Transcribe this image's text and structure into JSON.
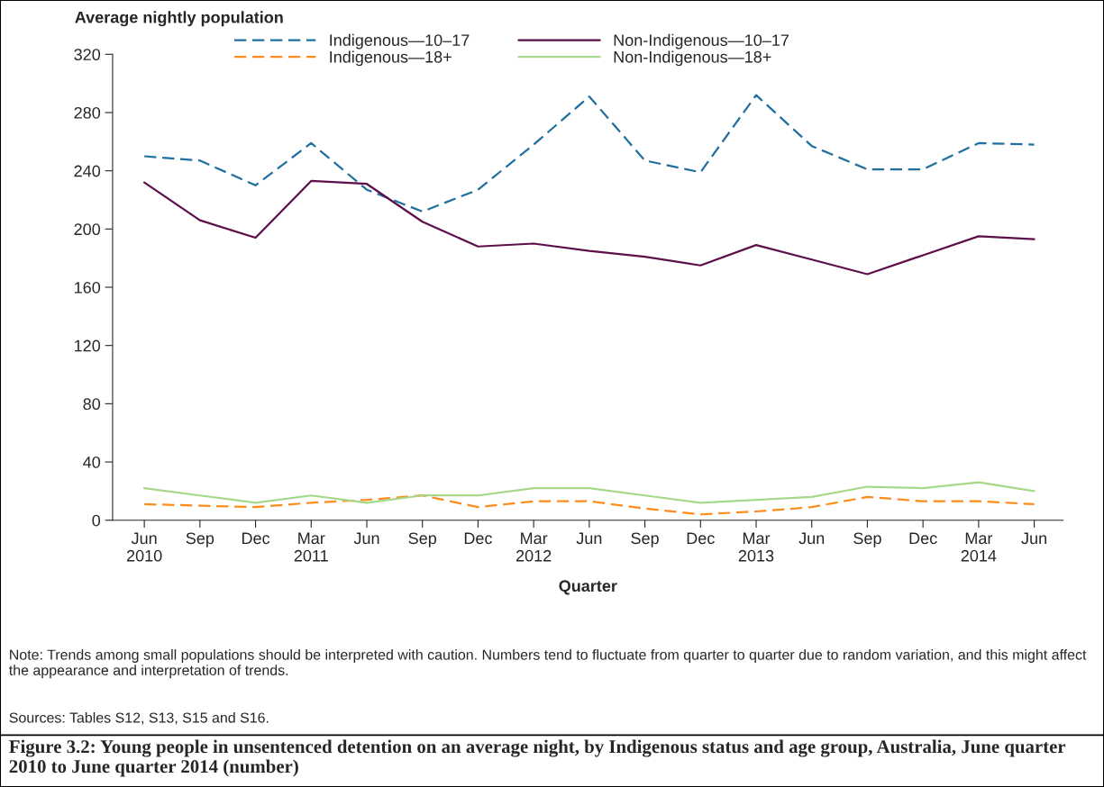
{
  "chart_data": {
    "type": "line",
    "title": "Figure 3.2: Young people in unsentenced detention on an average night, by Indigenous status and age group, Australia, June quarter 2010 to June quarter 2014 (number)",
    "ylabel": "Average nightly population",
    "xlabel": "Quarter",
    "categories": [
      "Jun\n2010",
      "Sep",
      "Dec",
      "Mar\n2011",
      "Jun",
      "Sep",
      "Dec",
      "Mar\n2012",
      "Jun",
      "Sep",
      "Dec",
      "Mar\n2013",
      "Jun",
      "Sep",
      "Dec",
      "Mar\n2014",
      "Jun"
    ],
    "series": [
      {
        "name": "Indigenous—10–17",
        "color": "#1f6f9f",
        "line_style": "dashed",
        "values": [
          250,
          247,
          230,
          259,
          227,
          212,
          227,
          258,
          291,
          247,
          239,
          292,
          257,
          241,
          241,
          259,
          258
        ]
      },
      {
        "name": "Indigenous—18+",
        "color": "#ff8c1a",
        "line_style": "dashed",
        "values": [
          11,
          10,
          9,
          12,
          14,
          17,
          9,
          13,
          13,
          8,
          4,
          6,
          9,
          16,
          13,
          13,
          11
        ]
      },
      {
        "name": "Non-Indigenous—10–17",
        "color": "#5c0f4a",
        "line_style": "solid",
        "values": [
          232,
          206,
          194,
          233,
          231,
          205,
          188,
          190,
          185,
          181,
          175,
          189,
          179,
          169,
          182,
          195,
          193
        ]
      },
      {
        "name": "Non-Indigenous—18+",
        "color": "#a6d88a",
        "line_style": "solid",
        "values": [
          22,
          17,
          12,
          17,
          12,
          17,
          17,
          22,
          22,
          17,
          12,
          14,
          16,
          23,
          22,
          26,
          20
        ]
      }
    ],
    "ylim": [
      0,
      320
    ],
    "yticks": [
      0,
      40,
      80,
      120,
      160,
      200,
      240,
      280,
      320
    ],
    "grid": false,
    "legend": "top",
    "marker": "none",
    "annotations": [
      "Note: Trends among small populations should be interpreted with caution. Numbers tend to fluctuate from quarter to quarter due to random variation, and this might affect the appearance and interpretation of trends.",
      "Sources: Tables S12, S13, S15 and S16."
    ]
  }
}
